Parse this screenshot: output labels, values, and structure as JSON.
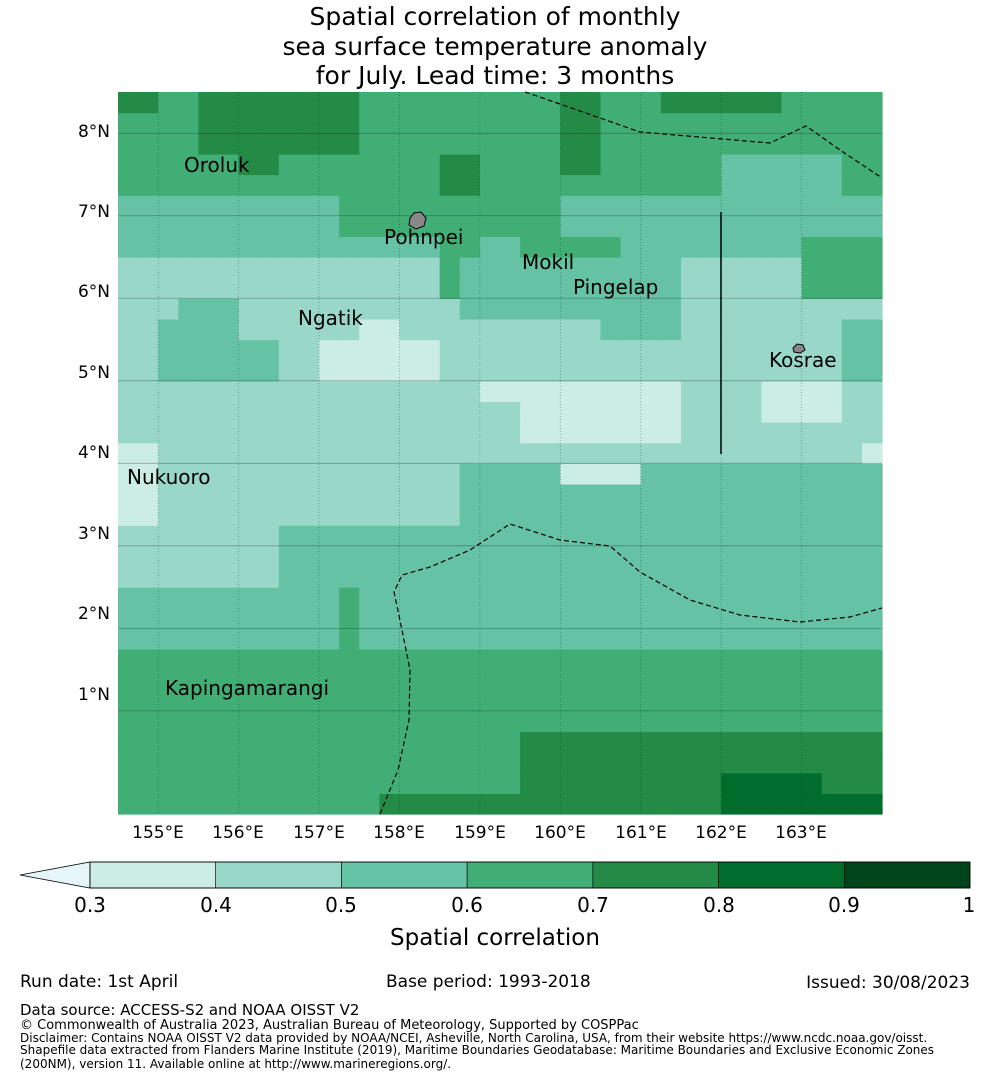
{
  "title": {
    "line1": "Spatial correlation of monthly",
    "line2": "sea surface temperature anomaly",
    "line3": "for July. Lead time: 3 months"
  },
  "map": {
    "lon_range": [
      154.5,
      164.0
    ],
    "lat_range": [
      -0.25,
      8.5
    ],
    "grid_resolution_deg": 0.25,
    "grid": "on",
    "lon_ticks": [
      "155°E",
      "156°E",
      "157°E",
      "158°E",
      "159°E",
      "160°E",
      "161°E",
      "162°E",
      "163°E"
    ],
    "lat_ticks": [
      "1°N",
      "2°N",
      "3°N",
      "4°N",
      "5°N",
      "6°N",
      "7°N",
      "8°N"
    ],
    "islands": [
      {
        "name": "Oroluk",
        "lon": 155.85,
        "lat": 7.55
      },
      {
        "name": "Pohnpei",
        "lon": 158.2,
        "lat": 6.9
      },
      {
        "name": "Mokil",
        "lon": 159.75,
        "lat": 6.68
      },
      {
        "name": "Pingelap",
        "lon": 160.7,
        "lat": 6.22
      },
      {
        "name": "Ngatik",
        "lon": 157.15,
        "lat": 5.8
      },
      {
        "name": "Kosrae",
        "lon": 163.0,
        "lat": 5.32
      },
      {
        "name": "Nukuoro",
        "lon": 155.0,
        "lat": 3.85
      },
      {
        "name": "Kapingamarangi",
        "lon": 154.77,
        "lat": 1.08
      }
    ]
  },
  "colorbar": {
    "bounds": [
      "0.3",
      "0.4",
      "0.5",
      "0.6",
      "0.7",
      "0.8",
      "0.9",
      "1"
    ],
    "colors": [
      "#ccece6",
      "#99d8c9",
      "#66c2a4",
      "#41ae76",
      "#238b45",
      "#006d2c",
      "#00441b"
    ],
    "under_color": "#e5f5f9",
    "extend": "min",
    "label": "Spatial correlation"
  },
  "footer": {
    "run_date": "Run date: 1st April",
    "base_period": "Base period: 1993-2018",
    "issued": "Issued: 30/08/2023",
    "data_source": "Data source: ACCESS-S2 and NOAA OISST V2",
    "copyright": "© Commonwealth of Australia 2023, Australian Bureau of Meteorology, Supported by COSPPac",
    "disclaimer1": "Disclaimer: Contains NOAA OISST V2 data provided by NOAA/NCEI, Asheville, North Carolina, USA, from their website https://www.ncdc.noaa.gov/oisst.",
    "disclaimer2": "Shapefile data extracted from Flanders Marine Institute (2019), Maritime Boundaries Geodatabase: Maritime Boundaries and Exclusive Economic Zones",
    "disclaimer3": "(200NM), version 11. Available online at http://www.marineregions.org/."
  }
}
